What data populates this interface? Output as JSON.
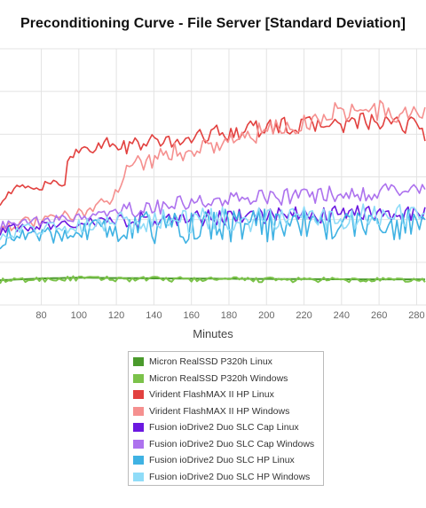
{
  "chart_data": {
    "type": "line",
    "title": "Preconditioning Curve - File Server [Standard Deviation]",
    "xlabel": "Minutes",
    "ylabel": "",
    "xlim": [
      58,
      285
    ],
    "ylim": [
      0,
      6
    ],
    "x_ticks": [
      80,
      100,
      120,
      140,
      160,
      180,
      200,
      220,
      240,
      260,
      280
    ],
    "grid": true,
    "legend_position": "bottom",
    "series": [
      {
        "name": "Micron RealSSD P320h Linux",
        "color": "#4a9a2c",
        "x": [
          58,
          80,
          100,
          120,
          150,
          200,
          250,
          285
        ],
        "y": [
          0.58,
          0.62,
          0.64,
          0.63,
          0.62,
          0.61,
          0.6,
          0.6
        ]
      },
      {
        "name": "Micron RealSSD P320h Windows",
        "color": "#7bc24a",
        "x": [
          58,
          80,
          100,
          120,
          150,
          200,
          250,
          285
        ],
        "y": [
          0.56,
          0.6,
          0.62,
          0.61,
          0.6,
          0.59,
          0.58,
          0.58
        ]
      },
      {
        "name": "Virident FlashMAX II HP Linux",
        "color": "#e2413f",
        "x": [
          58,
          65,
          75,
          85,
          92,
          95,
          100,
          110,
          115,
          120,
          130,
          140,
          150,
          160,
          170,
          180,
          190,
          200,
          210,
          220,
          230,
          240,
          250,
          260,
          270,
          280,
          285
        ],
        "y": [
          2.45,
          2.7,
          2.75,
          2.8,
          2.8,
          3.55,
          3.6,
          3.7,
          3.85,
          3.65,
          3.75,
          3.8,
          3.85,
          3.9,
          4.0,
          4.05,
          4.1,
          4.15,
          4.2,
          4.2,
          4.25,
          4.2,
          4.3,
          4.25,
          4.2,
          4.25,
          4.0
        ]
      },
      {
        "name": "Virident FlashMAX II HP Windows",
        "color": "#f5908f",
        "x": [
          58,
          70,
          80,
          90,
          100,
          110,
          115,
          120,
          125,
          130,
          140,
          150,
          160,
          170,
          180,
          190,
          200,
          210,
          220,
          230,
          240,
          250,
          260,
          270,
          280,
          285
        ],
        "y": [
          1.85,
          1.9,
          1.95,
          2.05,
          2.15,
          2.3,
          2.4,
          2.75,
          3.2,
          3.3,
          3.45,
          3.55,
          3.65,
          3.75,
          3.85,
          3.95,
          4.05,
          4.15,
          4.25,
          4.4,
          4.6,
          4.5,
          4.55,
          4.45,
          4.5,
          4.4
        ]
      },
      {
        "name": "Fusion ioDrive2 Duo SLC Cap Linux",
        "color": "#6b18e0",
        "x": [
          58,
          80,
          100,
          120,
          140,
          160,
          180,
          200,
          220,
          240,
          260,
          280,
          285
        ],
        "y": [
          1.75,
          1.85,
          1.92,
          1.97,
          2.0,
          2.02,
          2.05,
          2.08,
          2.1,
          2.12,
          2.14,
          2.16,
          2.15
        ]
      },
      {
        "name": "Fusion ioDrive2 Duo SLC Cap Windows",
        "color": "#ad72ee",
        "x": [
          58,
          80,
          100,
          120,
          140,
          160,
          180,
          200,
          220,
          240,
          260,
          280,
          285
        ],
        "y": [
          1.85,
          1.95,
          2.05,
          2.15,
          2.3,
          2.4,
          2.45,
          2.5,
          2.55,
          2.6,
          2.65,
          2.7,
          2.6
        ]
      },
      {
        "name": "Fusion ioDrive2 Duo SLC HP Linux",
        "color": "#3fb2e3",
        "x": [
          58,
          80,
          100,
          120,
          140,
          160,
          180,
          200,
          220,
          240,
          260,
          280,
          285
        ],
        "y": [
          1.55,
          1.65,
          1.75,
          1.8,
          1.82,
          1.85,
          1.87,
          1.88,
          1.88,
          1.88,
          1.88,
          1.88,
          1.88
        ]
      },
      {
        "name": "Fusion ioDrive2 Duo SLC HP Windows",
        "color": "#8fdcf8",
        "x": [
          58,
          80,
          100,
          120,
          140,
          160,
          180,
          200,
          220,
          240,
          260,
          280,
          285
        ],
        "y": [
          1.7,
          1.8,
          1.88,
          1.93,
          1.96,
          1.98,
          2.0,
          2.02,
          2.04,
          2.06,
          2.08,
          2.1,
          2.12
        ]
      }
    ]
  }
}
